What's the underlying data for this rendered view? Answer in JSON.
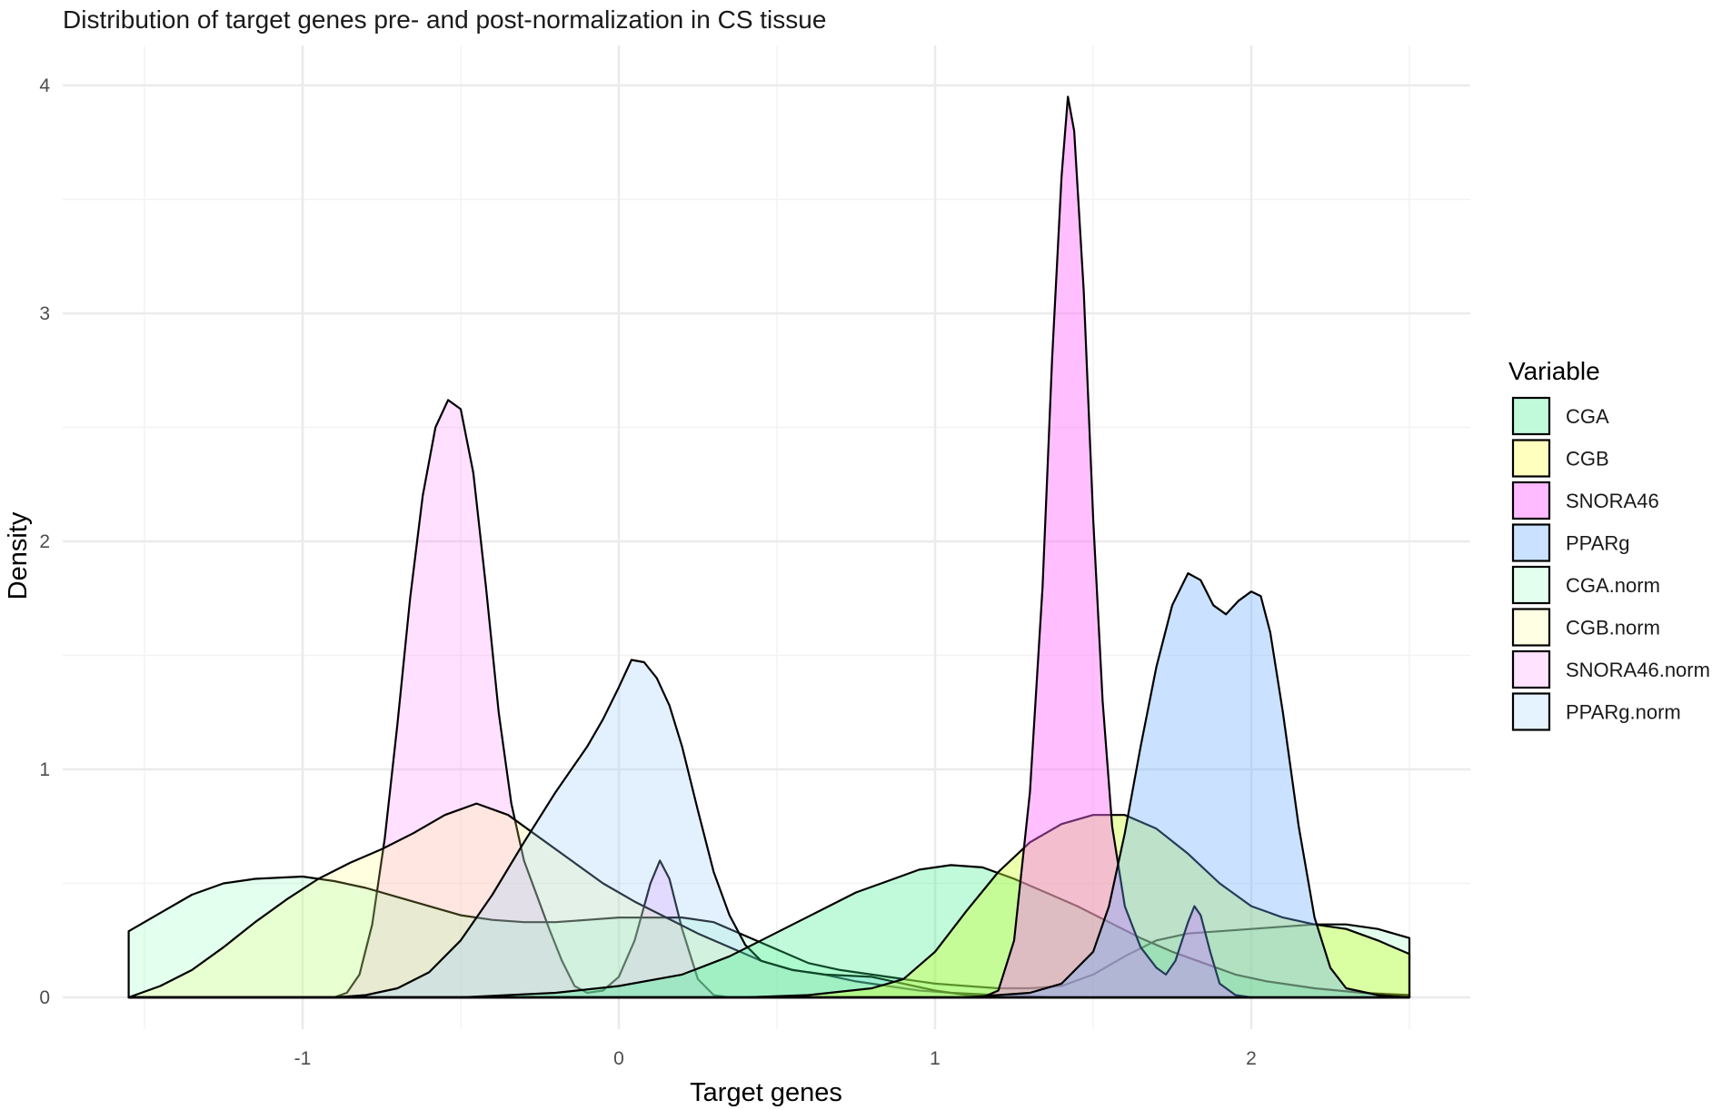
{
  "chart_data": {
    "type": "area",
    "subtype": "density",
    "title": "Distribution of target genes pre- and post-normalization in CS tissue",
    "xlabel": "Target genes",
    "ylabel": "Density",
    "xlim": [
      -1.55,
      2.5
    ],
    "ylim": [
      0,
      4.1
    ],
    "x_ticks": [
      -1,
      0,
      1,
      2
    ],
    "y_ticks": [
      0,
      1,
      2,
      3,
      4
    ],
    "grid": true,
    "legend": {
      "title": "Variable",
      "position": "right"
    },
    "series": [
      {
        "name": "SNORA46.norm",
        "color": "#ff66ff",
        "alpha": 0.2,
        "points": [
          [
            -1.55,
            0
          ],
          [
            -0.9,
            0
          ],
          [
            -0.86,
            0.02
          ],
          [
            -0.82,
            0.1
          ],
          [
            -0.78,
            0.32
          ],
          [
            -0.74,
            0.7
          ],
          [
            -0.7,
            1.2
          ],
          [
            -0.66,
            1.75
          ],
          [
            -0.62,
            2.2
          ],
          [
            -0.58,
            2.5
          ],
          [
            -0.54,
            2.62
          ],
          [
            -0.5,
            2.58
          ],
          [
            -0.46,
            2.3
          ],
          [
            -0.42,
            1.8
          ],
          [
            -0.38,
            1.25
          ],
          [
            -0.34,
            0.85
          ],
          [
            -0.3,
            0.6
          ],
          [
            -0.26,
            0.45
          ],
          [
            -0.22,
            0.3
          ],
          [
            -0.18,
            0.16
          ],
          [
            -0.14,
            0.05
          ],
          [
            -0.1,
            0.02
          ],
          [
            -0.05,
            0.03
          ],
          [
            0,
            0.09
          ],
          [
            0.05,
            0.25
          ],
          [
            0.1,
            0.5
          ],
          [
            0.13,
            0.6
          ],
          [
            0.16,
            0.52
          ],
          [
            0.2,
            0.3
          ],
          [
            0.25,
            0.08
          ],
          [
            0.3,
            0.01
          ],
          [
            0.35,
            0
          ],
          [
            2.5,
            0
          ]
        ]
      },
      {
        "name": "CGA.norm",
        "color": "#66ff99",
        "alpha": 0.18,
        "points": [
          [
            -1.55,
            0.29
          ],
          [
            -1.45,
            0.37
          ],
          [
            -1.35,
            0.45
          ],
          [
            -1.25,
            0.5
          ],
          [
            -1.15,
            0.52
          ],
          [
            -1.0,
            0.53
          ],
          [
            -0.9,
            0.51
          ],
          [
            -0.8,
            0.48
          ],
          [
            -0.7,
            0.44
          ],
          [
            -0.6,
            0.4
          ],
          [
            -0.5,
            0.36
          ],
          [
            -0.4,
            0.34
          ],
          [
            -0.3,
            0.33
          ],
          [
            -0.2,
            0.33
          ],
          [
            -0.1,
            0.34
          ],
          [
            0,
            0.35
          ],
          [
            0.1,
            0.35
          ],
          [
            0.2,
            0.35
          ],
          [
            0.3,
            0.33
          ],
          [
            0.4,
            0.27
          ],
          [
            0.5,
            0.21
          ],
          [
            0.6,
            0.15
          ],
          [
            0.7,
            0.12
          ],
          [
            0.8,
            0.1
          ],
          [
            0.9,
            0.08
          ],
          [
            1.0,
            0.06
          ],
          [
            1.1,
            0.05
          ],
          [
            1.2,
            0.04
          ],
          [
            1.3,
            0.04
          ],
          [
            1.4,
            0.05
          ],
          [
            1.5,
            0.1
          ],
          [
            1.6,
            0.18
          ],
          [
            1.7,
            0.25
          ],
          [
            1.8,
            0.28
          ],
          [
            1.9,
            0.29
          ],
          [
            2.0,
            0.3
          ],
          [
            2.1,
            0.31
          ],
          [
            2.2,
            0.32
          ],
          [
            2.3,
            0.32
          ],
          [
            2.4,
            0.3
          ],
          [
            2.5,
            0.26
          ],
          [
            2.5,
            0
          ]
        ]
      },
      {
        "name": "CGB.norm",
        "color": "#ffff66",
        "alpha": 0.2,
        "points": [
          [
            -1.55,
            0
          ],
          [
            -1.45,
            0.05
          ],
          [
            -1.35,
            0.12
          ],
          [
            -1.25,
            0.22
          ],
          [
            -1.15,
            0.33
          ],
          [
            -1.05,
            0.43
          ],
          [
            -0.95,
            0.52
          ],
          [
            -0.85,
            0.59
          ],
          [
            -0.75,
            0.65
          ],
          [
            -0.65,
            0.72
          ],
          [
            -0.55,
            0.8
          ],
          [
            -0.45,
            0.85
          ],
          [
            -0.35,
            0.8
          ],
          [
            -0.25,
            0.7
          ],
          [
            -0.15,
            0.6
          ],
          [
            -0.05,
            0.5
          ],
          [
            0.05,
            0.42
          ],
          [
            0.15,
            0.35
          ],
          [
            0.25,
            0.28
          ],
          [
            0.35,
            0.22
          ],
          [
            0.45,
            0.16
          ],
          [
            0.55,
            0.12
          ],
          [
            0.65,
            0.1
          ],
          [
            0.75,
            0.07
          ],
          [
            0.85,
            0.05
          ],
          [
            0.95,
            0.03
          ],
          [
            1.05,
            0.02
          ],
          [
            1.2,
            0.01
          ],
          [
            1.4,
            0
          ],
          [
            2.5,
            0
          ]
        ]
      },
      {
        "name": "PPARg.norm",
        "color": "#99ccff",
        "alpha": 0.28,
        "points": [
          [
            -1.55,
            0
          ],
          [
            -0.9,
            0
          ],
          [
            -0.8,
            0.01
          ],
          [
            -0.7,
            0.04
          ],
          [
            -0.6,
            0.11
          ],
          [
            -0.5,
            0.25
          ],
          [
            -0.4,
            0.45
          ],
          [
            -0.3,
            0.68
          ],
          [
            -0.2,
            0.9
          ],
          [
            -0.1,
            1.1
          ],
          [
            -0.05,
            1.22
          ],
          [
            0,
            1.36
          ],
          [
            0.04,
            1.48
          ],
          [
            0.08,
            1.47
          ],
          [
            0.12,
            1.4
          ],
          [
            0.16,
            1.28
          ],
          [
            0.2,
            1.1
          ],
          [
            0.25,
            0.82
          ],
          [
            0.3,
            0.55
          ],
          [
            0.35,
            0.36
          ],
          [
            0.4,
            0.23
          ],
          [
            0.45,
            0.16
          ],
          [
            0.55,
            0.12
          ],
          [
            0.65,
            0.1
          ],
          [
            0.8,
            0.09
          ],
          [
            0.9,
            0.06
          ],
          [
            1.0,
            0.03
          ],
          [
            1.1,
            0.01
          ],
          [
            1.2,
            0
          ],
          [
            2.5,
            0
          ]
        ]
      },
      {
        "name": "CGA",
        "color": "#33ee88",
        "alpha": 0.3,
        "points": [
          [
            -1.55,
            0
          ],
          [
            -0.5,
            0
          ],
          [
            -0.2,
            0.02
          ],
          [
            0,
            0.05
          ],
          [
            0.2,
            0.1
          ],
          [
            0.35,
            0.18
          ],
          [
            0.45,
            0.25
          ],
          [
            0.55,
            0.32
          ],
          [
            0.65,
            0.39
          ],
          [
            0.75,
            0.46
          ],
          [
            0.85,
            0.51
          ],
          [
            0.95,
            0.56
          ],
          [
            1.05,
            0.58
          ],
          [
            1.15,
            0.57
          ],
          [
            1.25,
            0.52
          ],
          [
            1.35,
            0.46
          ],
          [
            1.45,
            0.4
          ],
          [
            1.55,
            0.33
          ],
          [
            1.65,
            0.26
          ],
          [
            1.75,
            0.2
          ],
          [
            1.85,
            0.15
          ],
          [
            1.95,
            0.1
          ],
          [
            2.05,
            0.07
          ],
          [
            2.2,
            0.04
          ],
          [
            2.35,
            0.02
          ],
          [
            2.5,
            0.01
          ],
          [
            2.5,
            0
          ]
        ]
      },
      {
        "name": "CGB",
        "color": "#ccff33",
        "alpha": 0.4,
        "points": [
          [
            -1.55,
            0
          ],
          [
            0.4,
            0
          ],
          [
            0.6,
            0.01
          ],
          [
            0.8,
            0.04
          ],
          [
            0.9,
            0.08
          ],
          [
            1.0,
            0.2
          ],
          [
            1.1,
            0.38
          ],
          [
            1.2,
            0.55
          ],
          [
            1.3,
            0.68
          ],
          [
            1.4,
            0.76
          ],
          [
            1.5,
            0.8
          ],
          [
            1.6,
            0.8
          ],
          [
            1.7,
            0.74
          ],
          [
            1.8,
            0.63
          ],
          [
            1.9,
            0.5
          ],
          [
            2.0,
            0.4
          ],
          [
            2.1,
            0.35
          ],
          [
            2.2,
            0.32
          ],
          [
            2.3,
            0.3
          ],
          [
            2.4,
            0.25
          ],
          [
            2.5,
            0.19
          ],
          [
            2.5,
            0
          ]
        ]
      },
      {
        "name": "SNORA46",
        "color": "#ff66ff",
        "alpha": 0.42,
        "points": [
          [
            -1.55,
            0
          ],
          [
            1.15,
            0
          ],
          [
            1.2,
            0.03
          ],
          [
            1.25,
            0.25
          ],
          [
            1.3,
            0.9
          ],
          [
            1.34,
            1.8
          ],
          [
            1.37,
            2.8
          ],
          [
            1.4,
            3.6
          ],
          [
            1.42,
            3.95
          ],
          [
            1.44,
            3.8
          ],
          [
            1.47,
            3.1
          ],
          [
            1.5,
            2.1
          ],
          [
            1.53,
            1.3
          ],
          [
            1.56,
            0.75
          ],
          [
            1.6,
            0.4
          ],
          [
            1.65,
            0.22
          ],
          [
            1.7,
            0.13
          ],
          [
            1.73,
            0.1
          ],
          [
            1.76,
            0.16
          ],
          [
            1.8,
            0.33
          ],
          [
            1.82,
            0.4
          ],
          [
            1.84,
            0.36
          ],
          [
            1.87,
            0.2
          ],
          [
            1.9,
            0.06
          ],
          [
            1.95,
            0.01
          ],
          [
            2.0,
            0
          ],
          [
            2.5,
            0
          ]
        ]
      },
      {
        "name": "PPARg",
        "color": "#66aaff",
        "alpha": 0.35,
        "points": [
          [
            -1.55,
            0
          ],
          [
            1.1,
            0
          ],
          [
            1.3,
            0.02
          ],
          [
            1.4,
            0.06
          ],
          [
            1.5,
            0.2
          ],
          [
            1.55,
            0.4
          ],
          [
            1.6,
            0.72
          ],
          [
            1.65,
            1.1
          ],
          [
            1.7,
            1.45
          ],
          [
            1.75,
            1.72
          ],
          [
            1.8,
            1.86
          ],
          [
            1.84,
            1.83
          ],
          [
            1.88,
            1.72
          ],
          [
            1.92,
            1.68
          ],
          [
            1.96,
            1.74
          ],
          [
            2.0,
            1.78
          ],
          [
            2.03,
            1.76
          ],
          [
            2.06,
            1.6
          ],
          [
            2.1,
            1.25
          ],
          [
            2.15,
            0.75
          ],
          [
            2.2,
            0.35
          ],
          [
            2.25,
            0.13
          ],
          [
            2.3,
            0.04
          ],
          [
            2.4,
            0.01
          ],
          [
            2.5,
            0
          ],
          [
            2.5,
            0
          ]
        ]
      }
    ],
    "legend_items": [
      {
        "name": "CGA",
        "color": "#33ee88",
        "alpha": 0.3
      },
      {
        "name": "CGB",
        "color": "#ffff44",
        "alpha": 0.35
      },
      {
        "name": "SNORA46",
        "color": "#ff55ff",
        "alpha": 0.4
      },
      {
        "name": "PPARg",
        "color": "#66aaff",
        "alpha": 0.35
      },
      {
        "name": "CGA.norm",
        "color": "#66ff99",
        "alpha": 0.18
      },
      {
        "name": "CGB.norm",
        "color": "#ffff66",
        "alpha": 0.18
      },
      {
        "name": "SNORA46.norm",
        "color": "#ff66ff",
        "alpha": 0.18
      },
      {
        "name": "PPARg.norm",
        "color": "#99ccff",
        "alpha": 0.25
      }
    ]
  }
}
